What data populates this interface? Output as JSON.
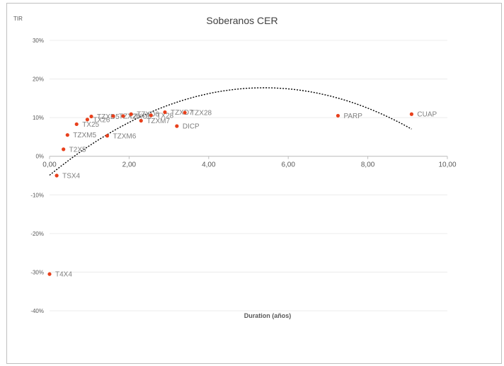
{
  "chart_data": {
    "type": "scatter",
    "title": "Soberanos CER",
    "ylabel": "TIR",
    "xlabel": "Duration (años)",
    "xlim": [
      0,
      10
    ],
    "ylim": [
      -40,
      30
    ],
    "x_ticks": [
      "0,00",
      "2,00",
      "4,00",
      "6,00",
      "8,00",
      "10,00"
    ],
    "y_ticks": [
      "30%",
      "20%",
      "10%",
      "0%",
      "-10%",
      "-20%",
      "-30%",
      "-40%"
    ],
    "grid": true,
    "marker_color": "#e8401c",
    "trendline": {
      "type": "polynomial-2",
      "style": "dotted",
      "color": "#000000"
    },
    "points": [
      {
        "label": "T4X4",
        "x": 0.0,
        "y": -30.5
      },
      {
        "label": "TSX4",
        "x": 0.18,
        "y": -5.0
      },
      {
        "label": "T2X5",
        "x": 0.35,
        "y": 1.8
      },
      {
        "label": "TZXM5",
        "x": 0.45,
        "y": 5.5
      },
      {
        "label": "TX25",
        "x": 0.68,
        "y": 8.3
      },
      {
        "label": "TX26",
        "x": 0.95,
        "y": 9.5
      },
      {
        "label": "TZXD5",
        "x": 1.05,
        "y": 10.3
      },
      {
        "label": "TZXM6",
        "x": 1.45,
        "y": 5.3
      },
      {
        "label": "TZX26",
        "x": 1.6,
        "y": 10.4
      },
      {
        "label": "TZXO6",
        "x": 1.85,
        "y": 10.4
      },
      {
        "label": "TZXD6",
        "x": 2.05,
        "y": 10.9
      },
      {
        "label": "TZXM7",
        "x": 2.3,
        "y": 9.2
      },
      {
        "label": "TX28",
        "x": 2.55,
        "y": 10.6
      },
      {
        "label": "TZXD7",
        "x": 2.9,
        "y": 11.4
      },
      {
        "label": "DICP",
        "x": 3.2,
        "y": 7.8
      },
      {
        "label": "TZX28",
        "x": 3.4,
        "y": 11.3
      },
      {
        "label": "PARP",
        "x": 7.25,
        "y": 10.5
      },
      {
        "label": "CUAP",
        "x": 9.1,
        "y": 10.9
      }
    ]
  }
}
